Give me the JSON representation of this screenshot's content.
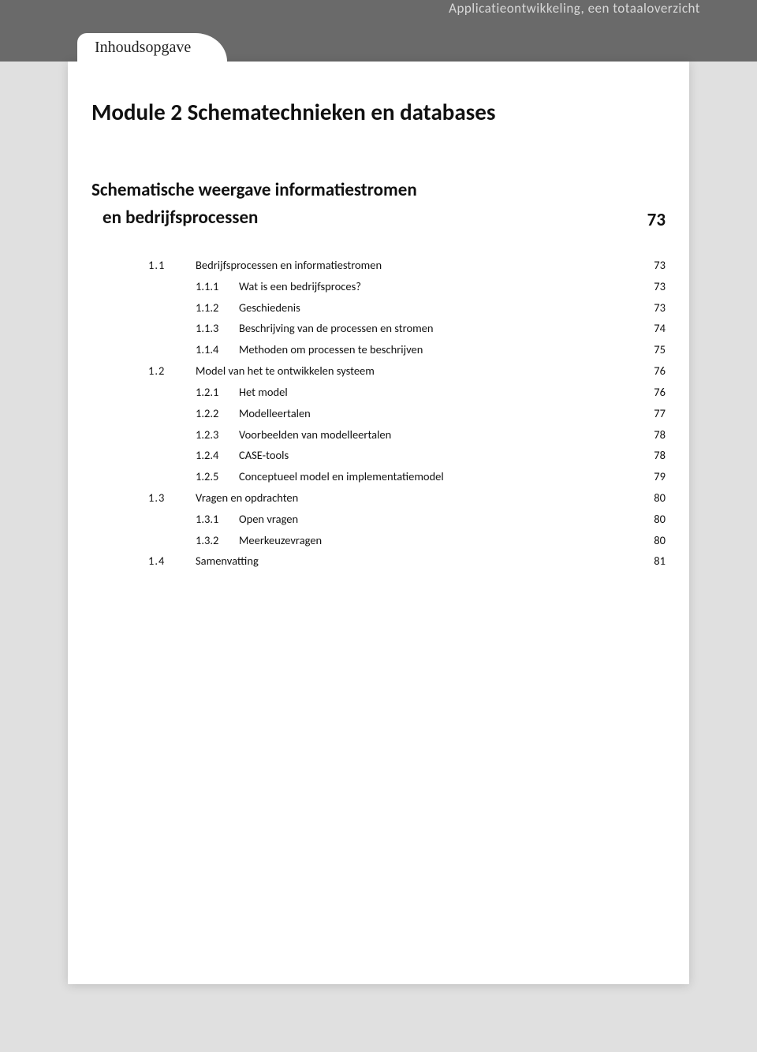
{
  "header": {
    "book_title": "Applicatieontwikkeling, een totaaloverzicht",
    "tab_label": "Inhoudsopgave"
  },
  "module": {
    "title": "Module 2 Schematechnieken en databases"
  },
  "chapter": {
    "title_line1": "Schematische weergave informatiestromen",
    "title_line2": "en bedrijfsprocessen",
    "page": "73"
  },
  "toc": {
    "sections": [
      {
        "num": "1.1",
        "title": "Bedrijfsprocessen en informatiestromen",
        "page": "73",
        "subs": [
          {
            "num": "1.1.1",
            "title": "Wat is een bedrijfsproces?",
            "page": "73"
          },
          {
            "num": "1.1.2",
            "title": "Geschiedenis",
            "page": "73"
          },
          {
            "num": "1.1.3",
            "title": "Beschrijving van de processen en stromen",
            "page": "74"
          },
          {
            "num": "1.1.4",
            "title": "Methoden om processen te beschrijven",
            "page": "75"
          }
        ]
      },
      {
        "num": "1.2",
        "title": "Model van het te ontwikkelen systeem",
        "page": "76",
        "subs": [
          {
            "num": "1.2.1",
            "title": "Het model",
            "page": "76"
          },
          {
            "num": "1.2.2",
            "title": "Modelleertalen",
            "page": "77"
          },
          {
            "num": "1.2.3",
            "title": "Voorbeelden van modelleertalen",
            "page": "78"
          },
          {
            "num": "1.2.4",
            "title": "CASE-tools",
            "page": "78"
          },
          {
            "num": "1.2.5",
            "title": "Conceptueel model en implementatiemodel",
            "page": "79"
          }
        ]
      },
      {
        "num": "1.3",
        "title": "Vragen en opdrachten",
        "page": "80",
        "subs": [
          {
            "num": "1.3.1",
            "title": "Open vragen",
            "page": "80"
          },
          {
            "num": "1.3.2",
            "title": "Meerkeuzevragen",
            "page": "80"
          }
        ]
      },
      {
        "num": "1.4",
        "title": "Samenvatting",
        "page": "81",
        "subs": []
      }
    ]
  },
  "styling": {
    "page_bg": "#ffffff",
    "body_bg": "#e0e0e0",
    "header_bg": "#6a6a6a",
    "header_text_color": "#d8d8d8",
    "text_color": "#111111",
    "module_title_fontsize": 29,
    "section_title_fontsize": 23,
    "toc_fontsize": 14.5,
    "tab_font": "cursive"
  }
}
